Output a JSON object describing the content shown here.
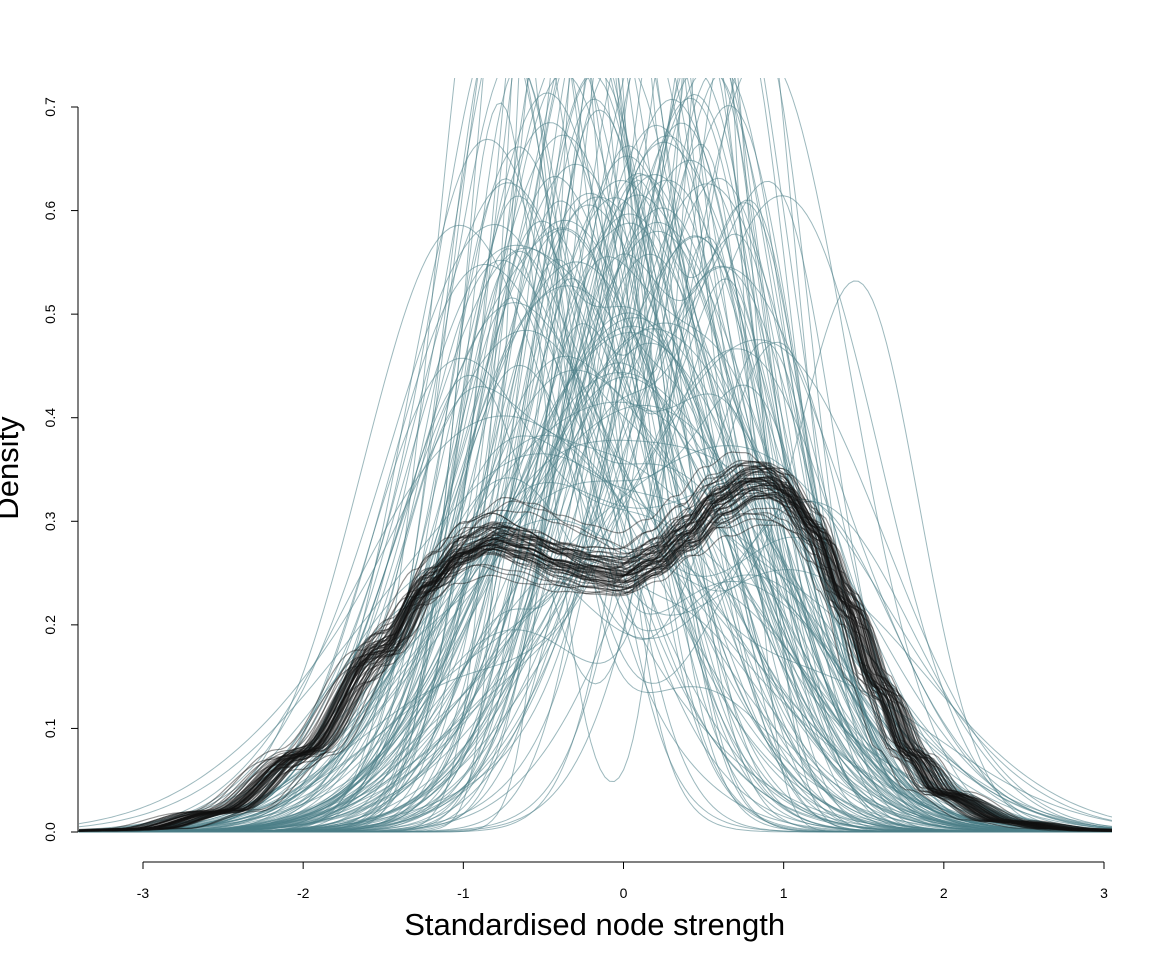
{
  "chart_data": {
    "type": "line",
    "title": "",
    "xlabel": "Standardised node strength",
    "ylabel": "Density",
    "xlim": [
      -3.4,
      3.05
    ],
    "ylim": [
      0,
      0.72
    ],
    "xticks": [
      "-3",
      "-2",
      "-1",
      "0",
      "1",
      "2",
      "3"
    ],
    "yticks": [
      "0.0",
      "0.1",
      "0.2",
      "0.3",
      "0.4",
      "0.5",
      "0.6",
      "0.7"
    ],
    "grid": false,
    "legend": "none",
    "colors": {
      "sample_curves": "#4a7e86",
      "reference_curves": "#111111"
    },
    "sample_curves": {
      "count": 150,
      "x_range": [
        -3.4,
        3.05
      ],
      "peak_density_range": [
        0.16,
        0.73
      ]
    },
    "reference_curves": {
      "count": 60,
      "series": [
        {
          "x": [
            -3.4,
            -3.0,
            -2.5,
            -2.0,
            -1.5,
            -1.2,
            -1.0,
            -0.8,
            -0.6,
            -0.4,
            -0.2,
            0.0,
            0.2,
            0.4,
            0.6,
            0.8,
            0.9,
            1.0,
            1.2,
            1.4,
            1.6,
            1.8,
            2.0,
            2.4,
            2.8,
            3.05
          ],
          "y": [
            0.001,
            0.003,
            0.02,
            0.075,
            0.175,
            0.24,
            0.27,
            0.283,
            0.275,
            0.263,
            0.255,
            0.25,
            0.265,
            0.29,
            0.32,
            0.337,
            0.338,
            0.33,
            0.29,
            0.22,
            0.14,
            0.075,
            0.037,
            0.01,
            0.003,
            0.001
          ]
        }
      ]
    }
  }
}
